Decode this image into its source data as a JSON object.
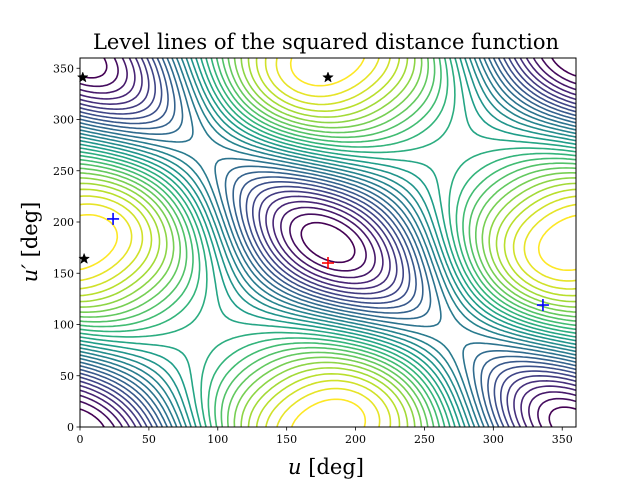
{
  "chart_data": {
    "type": "contour",
    "title": "Level lines of the squared distance function",
    "xlabel": "u [deg]",
    "ylabel": "u′ [deg]",
    "xlim": [
      0,
      360
    ],
    "ylim": [
      0,
      360
    ],
    "xticks": [
      0,
      50,
      100,
      150,
      200,
      250,
      300,
      350
    ],
    "yticks": [
      0,
      50,
      100,
      150,
      200,
      250,
      300,
      350
    ],
    "grid": false,
    "colormap": "viridis",
    "levels": 30,
    "maximum": {
      "marker": "+",
      "color": "#ff0000",
      "points": [
        {
          "x": 180,
          "y": 160
        }
      ]
    },
    "minima": {
      "marker": "+",
      "color": "#0000ff",
      "points": [
        {
          "x": 24,
          "y": 203
        },
        {
          "x": 336,
          "y": 119
        }
      ]
    },
    "saddles": {
      "marker": "star",
      "color": "#000000",
      "points": [
        {
          "x": 2,
          "y": 341
        },
        {
          "x": 180,
          "y": 341
        },
        {
          "x": 3,
          "y": 164
        }
      ]
    }
  }
}
